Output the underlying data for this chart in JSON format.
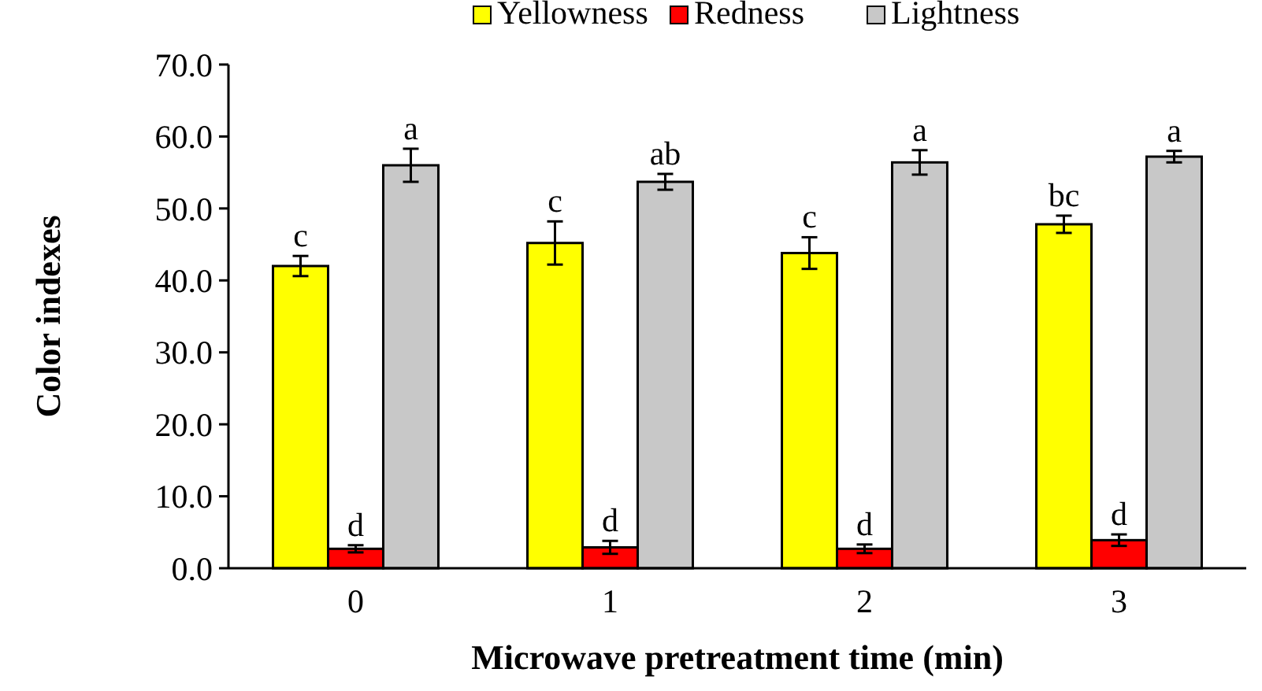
{
  "chart_data": {
    "type": "bar",
    "xlabel": "Microwave pretreatment time (min)",
    "ylabel": "Color indexes",
    "categories": [
      "0",
      "1",
      "2",
      "3"
    ],
    "series": [
      {
        "name": "Yellowness",
        "color": "#ffff00",
        "values": [
          42.0,
          45.2,
          43.8,
          47.8
        ],
        "errors": [
          1.4,
          3.0,
          2.2,
          1.2
        ],
        "value_labels": [
          "c",
          "c",
          "c",
          "bc"
        ]
      },
      {
        "name": "Redness",
        "color": "#ff0000",
        "values": [
          2.7,
          2.9,
          2.7,
          3.9
        ],
        "errors": [
          0.5,
          0.9,
          0.6,
          0.8
        ],
        "value_labels": [
          "d",
          "d",
          "d",
          "d"
        ]
      },
      {
        "name": "Lightness",
        "color": "#c8c8c8",
        "values": [
          56.0,
          53.7,
          56.4,
          57.2
        ],
        "errors": [
          2.3,
          1.1,
          1.7,
          0.8
        ],
        "value_labels": [
          "a",
          "ab",
          "a",
          "a"
        ]
      }
    ],
    "ylim": [
      0,
      70
    ],
    "yticks": [
      {
        "value": 0,
        "label": "0.0"
      },
      {
        "value": 10,
        "label": "10.0"
      },
      {
        "value": 20,
        "label": "20.0"
      },
      {
        "value": 30,
        "label": "30.0"
      },
      {
        "value": 40,
        "label": "40.0"
      },
      {
        "value": 50,
        "label": "50.0"
      },
      {
        "value": 60,
        "label": "60.0"
      },
      {
        "value": 70,
        "label": "70.0"
      }
    ],
    "legend": "top",
    "grid": false
  }
}
